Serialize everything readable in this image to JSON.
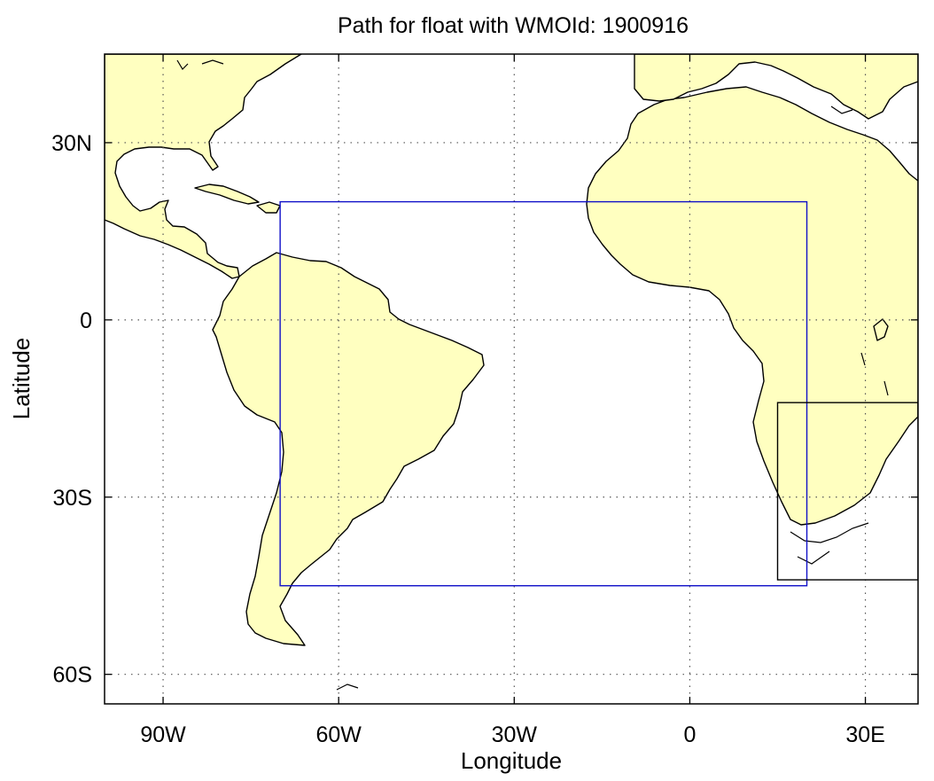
{
  "title": "Path for float with WMOId: 1900916",
  "xlabel": "Longitude",
  "ylabel": "Latitude",
  "x_ticks": [
    {
      "value": -90,
      "label": "90W"
    },
    {
      "value": -60,
      "label": "60W"
    },
    {
      "value": -30,
      "label": "30W"
    },
    {
      "value": 0,
      "label": "0"
    },
    {
      "value": 30,
      "label": "30E"
    }
  ],
  "y_ticks": [
    {
      "value": 30,
      "label": "30N"
    },
    {
      "value": 0,
      "label": "0"
    },
    {
      "value": -30,
      "label": "30S"
    },
    {
      "value": -60,
      "label": "60S"
    }
  ],
  "extent": {
    "lon_min": -100,
    "lon_max": 39,
    "lat_min": -65,
    "lat_max": 45
  },
  "regions": [
    {
      "name": "float-region-box",
      "lon_min": -70,
      "lon_max": 20,
      "lat_min": -45,
      "lat_max": 20,
      "color": "#1010c8"
    },
    {
      "name": "inset-region-box",
      "lon_min": 15,
      "lon_max": 39,
      "lat_min": -44,
      "lat_max": -14,
      "color": "#000000"
    }
  ],
  "colors": {
    "land": "#ffffc0",
    "coast": "#000000",
    "grid": "#555555",
    "frame": "#000000"
  },
  "grid": true
}
